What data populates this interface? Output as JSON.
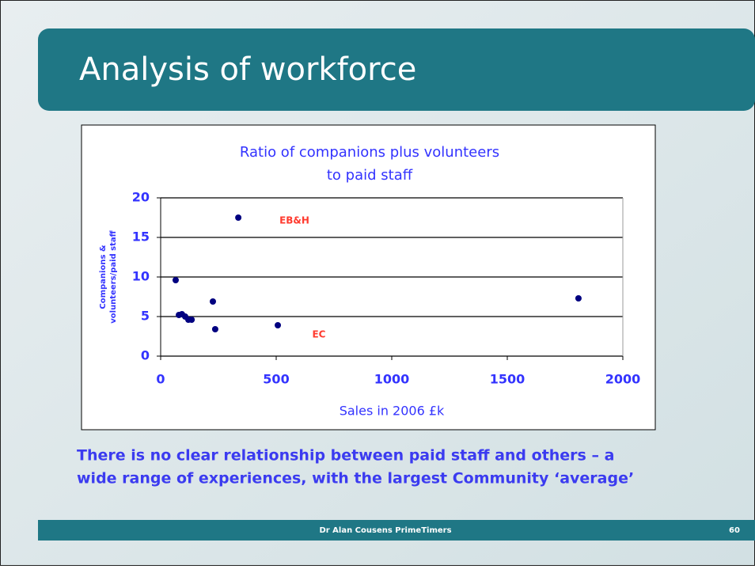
{
  "slide": {
    "title": "Analysis of workforce",
    "caption": [
      "There is no clear relationship between paid staff and others – a",
      "wide range of experiences, with the largest Community ‘average’"
    ],
    "footer": "Dr Alan Cousens PrimeTimers",
    "page": "60"
  },
  "chart_data": {
    "type": "scatter",
    "title": [
      "Ratio of companions plus volunteers",
      "to paid staff"
    ],
    "x_label": "Sales in 2006 £k",
    "y_label": [
      "Companions &",
      "volunteers/paid staff"
    ],
    "x": [
      336,
      65,
      79,
      92,
      106,
      120,
      134,
      226,
      236,
      507,
      1808
    ],
    "values": [
      17.5,
      9.6,
      5.2,
      5.3,
      5.0,
      4.6,
      4.6,
      6.9,
      3.4,
      3.9,
      7.3
    ],
    "color": "#000080",
    "xlim": [
      0,
      2000
    ],
    "xticks": [
      0,
      500,
      1000,
      1500,
      2000
    ],
    "ylim": [
      0,
      20
    ],
    "yticks": [
      0,
      5,
      10,
      15,
      20
    ],
    "grid": true,
    "annotations": [
      "EB&H",
      "EC"
    ]
  }
}
